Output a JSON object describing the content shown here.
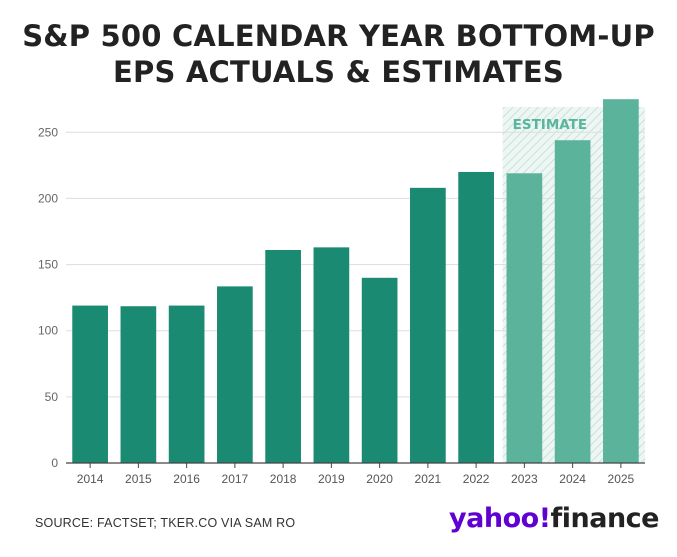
{
  "title": {
    "line1": "S&P 500 CALENDAR YEAR BOTTOM-UP",
    "line2": "EPS ACTUALS & ESTIMATES"
  },
  "source": "SOURCE: FACTSET; TKER.CO VIA SAM RO",
  "logo": {
    "brand": "yahoo",
    "mark": "!",
    "product": "finance"
  },
  "colors": {
    "actual": "#1b8a72",
    "estimate": "#5bb39b",
    "estimate_band": "#e6f2ee",
    "estimate_label": "#59b59b",
    "grid": "#dddddd",
    "axis": "#444444",
    "logo_purple": "#6001d2"
  },
  "chart_data": {
    "type": "bar",
    "title": "S&P 500 CALENDAR YEAR BOTTOM-UP EPS ACTUALS & ESTIMATES",
    "xlabel": "",
    "ylabel": "",
    "ylim": [
      0,
      275
    ],
    "yticks": [
      0,
      50,
      100,
      150,
      200,
      250
    ],
    "grid": true,
    "categories": [
      "2014",
      "2015",
      "2016",
      "2017",
      "2018",
      "2019",
      "2020",
      "2021",
      "2022",
      "2023",
      "2024",
      "2025"
    ],
    "values": [
      119,
      118.5,
      119,
      133.5,
      161,
      163,
      140,
      208,
      220,
      219,
      244,
      275
    ],
    "is_estimate": [
      false,
      false,
      false,
      false,
      false,
      false,
      false,
      false,
      false,
      true,
      true,
      true
    ],
    "annotation": "ESTIMATE"
  }
}
